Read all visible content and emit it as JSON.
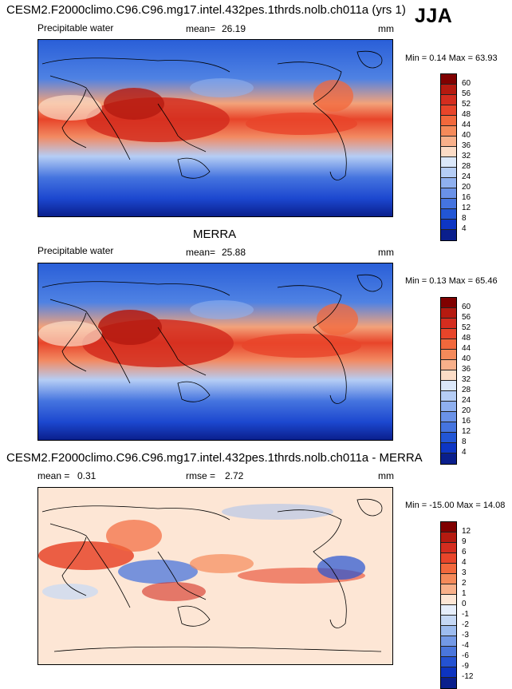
{
  "header": {
    "title": "CESM2.F2000climo.C96.C96.mg17.intel.432pes.1thrds.nolb.ch011a (yrs 1)",
    "season": "JJA"
  },
  "panels": [
    {
      "id": "test",
      "title": "",
      "variable": "Precipitable water",
      "mean_label": "mean=",
      "mean_value": "26.19",
      "units": "mm",
      "minmax": "Min =  0.14 Max =  63.93",
      "colorbar": {
        "ticks": [
          "60",
          "56",
          "52",
          "48",
          "44",
          "40",
          "36",
          "32",
          "28",
          "24",
          "20",
          "16",
          "12",
          "8",
          "4"
        ],
        "colors": [
          "#800000",
          "#b51a10",
          "#d42d1f",
          "#e8452a",
          "#f2683c",
          "#f58a5a",
          "#f8b08a",
          "#fbdcc6",
          "#dbe8fa",
          "#b5cdf5",
          "#8fb0ef",
          "#6a92e8",
          "#4574df",
          "#2256d5",
          "#0d36c4",
          "#0a1f8c"
        ]
      }
    },
    {
      "id": "reference",
      "title": "MERRA",
      "variable": "Precipitable water",
      "mean_label": "mean=",
      "mean_value": "25.88",
      "units": "mm",
      "minmax": "Min =  0.13 Max =  65.46",
      "colorbar": {
        "ticks": [
          "60",
          "56",
          "52",
          "48",
          "44",
          "40",
          "36",
          "32",
          "28",
          "24",
          "20",
          "16",
          "12",
          "8",
          "4"
        ],
        "colors": [
          "#800000",
          "#b51a10",
          "#d42d1f",
          "#e8452a",
          "#f2683c",
          "#f58a5a",
          "#f8b08a",
          "#fbdcc6",
          "#dbe8fa",
          "#b5cdf5",
          "#8fb0ef",
          "#6a92e8",
          "#4574df",
          "#2256d5",
          "#0d36c4",
          "#0a1f8c"
        ]
      }
    },
    {
      "id": "difference",
      "title": "CESM2.F2000climo.C96.C96.mg17.intel.432pes.1thrds.nolb.ch011a - MERRA",
      "variable": "",
      "mean_label": "mean =",
      "mean_value": "0.31",
      "rmse_label": "rmse =",
      "rmse_value": "2.72",
      "units": "mm",
      "minmax": "Min = -15.00 Max =  14.08",
      "colorbar": {
        "ticks": [
          "12",
          "9",
          "6",
          "4",
          "3",
          "2",
          "1",
          "0",
          "-1",
          "-2",
          "-3",
          "-4",
          "-6",
          "-9",
          "-12"
        ],
        "colors": [
          "#800000",
          "#b51a10",
          "#d42d1f",
          "#e8452a",
          "#f2683c",
          "#f58a5a",
          "#f8b08a",
          "#fde6d5",
          "#e6eefb",
          "#c5d8f5",
          "#9dbcef",
          "#7399e6",
          "#4a76dc",
          "#2452d2",
          "#0d34c0",
          "#0a1f8c"
        ]
      }
    }
  ]
}
